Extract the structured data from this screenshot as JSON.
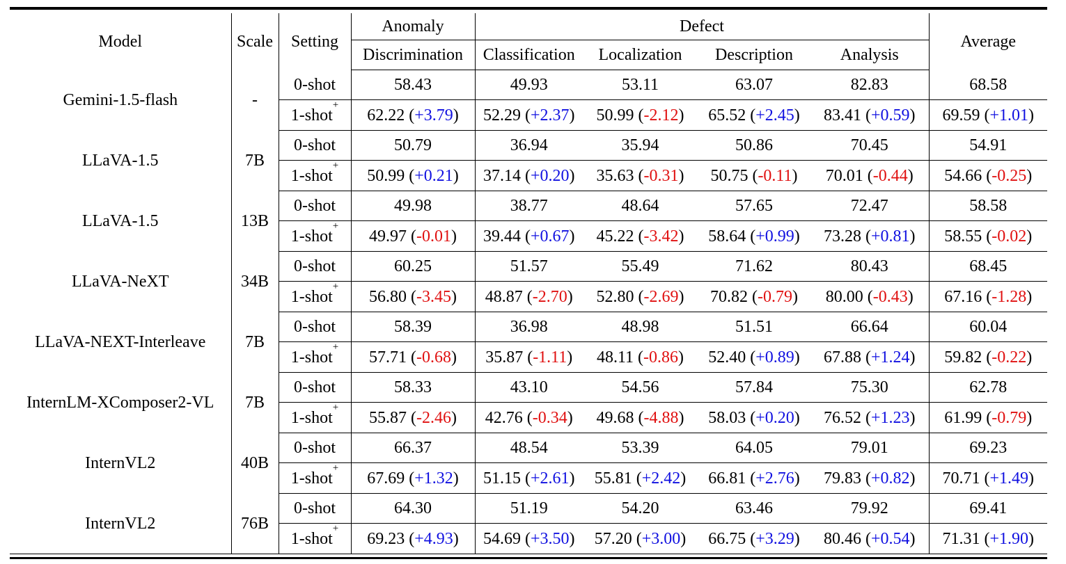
{
  "caption_fragment": "",
  "header": {
    "model": "Model",
    "scale": "Scale",
    "setting": "Setting",
    "anomaly": "Anomaly",
    "defect": "Defect",
    "average": "Average",
    "discrimination": "Discrimination",
    "classification": "Classification",
    "localization": "Localization",
    "description": "Description",
    "analysis": "Analysis"
  },
  "settings": {
    "zero": "0-shot",
    "one": "1-shot",
    "one_sup": "+"
  },
  "models": [
    {
      "name": "Gemini-1.5-flash",
      "scale": "-",
      "zero": [
        "58.43",
        "49.93",
        "53.11",
        "63.07",
        "82.83",
        "68.58"
      ],
      "one": [
        "62.22",
        "52.29",
        "50.99",
        "65.52",
        "83.41",
        "69.59"
      ],
      "delta": [
        "+3.79",
        "+2.37",
        "-2.12",
        "+2.45",
        "+0.59",
        "+1.01"
      ]
    },
    {
      "name": "LLaVA-1.5",
      "scale": "7B",
      "zero": [
        "50.79",
        "36.94",
        "35.94",
        "50.86",
        "70.45",
        "54.91"
      ],
      "one": [
        "50.99",
        "37.14",
        "35.63",
        "50.75",
        "70.01",
        "54.66"
      ],
      "delta": [
        "+0.21",
        "+0.20",
        "-0.31",
        "-0.11",
        "-0.44",
        "-0.25"
      ]
    },
    {
      "name": "LLaVA-1.5",
      "scale": "13B",
      "zero": [
        "49.98",
        "38.77",
        "48.64",
        "57.65",
        "72.47",
        "58.58"
      ],
      "one": [
        "49.97",
        "39.44",
        "45.22",
        "58.64",
        "73.28",
        "58.55"
      ],
      "delta": [
        "-0.01",
        "+0.67",
        "-3.42",
        "+0.99",
        "+0.81",
        "-0.02"
      ]
    },
    {
      "name": "LLaVA-NeXT",
      "scale": "34B",
      "zero": [
        "60.25",
        "51.57",
        "55.49",
        "71.62",
        "80.43",
        "68.45"
      ],
      "one": [
        "56.80",
        "48.87",
        "52.80",
        "70.82",
        "80.00",
        "67.16"
      ],
      "delta": [
        "-3.45",
        "-2.70",
        "-2.69",
        "-0.79",
        "-0.43",
        "-1.28"
      ]
    },
    {
      "name": "LLaVA-NEXT-Interleave",
      "scale": "7B",
      "zero": [
        "58.39",
        "36.98",
        "48.98",
        "51.51",
        "66.64",
        "60.04"
      ],
      "one": [
        "57.71",
        "35.87",
        "48.11",
        "52.40",
        "67.88",
        "59.82"
      ],
      "delta": [
        "-0.68",
        "-1.11",
        "-0.86",
        "+0.89",
        "+1.24",
        "-0.22"
      ]
    },
    {
      "name": "InternLM-XComposer2-VL",
      "scale": "7B",
      "zero": [
        "58.33",
        "43.10",
        "54.56",
        "57.84",
        "75.30",
        "62.78"
      ],
      "one": [
        "55.87",
        "42.76",
        "49.68",
        "58.03",
        "76.52",
        "61.99"
      ],
      "delta": [
        "-2.46",
        "-0.34",
        "-4.88",
        "+0.20",
        "+1.23",
        "-0.79"
      ]
    },
    {
      "name": "InternVL2",
      "scale": "40B",
      "zero": [
        "66.37",
        "48.54",
        "53.39",
        "64.05",
        "79.01",
        "69.23"
      ],
      "one": [
        "67.69",
        "51.15",
        "55.81",
        "66.81",
        "79.83",
        "70.71"
      ],
      "delta": [
        "+1.32",
        "+2.61",
        "+2.42",
        "+2.76",
        "+0.82",
        "+1.49"
      ]
    },
    {
      "name": "InternVL2",
      "scale": "76B",
      "zero": [
        "64.30",
        "51.19",
        "54.20",
        "63.46",
        "79.92",
        "69.41"
      ],
      "one": [
        "69.23",
        "54.69",
        "57.20",
        "66.75",
        "80.46",
        "71.31"
      ],
      "delta": [
        "+4.93",
        "+3.50",
        "+3.00",
        "+3.29",
        "+0.54",
        "+1.90"
      ]
    }
  ],
  "colors": {
    "positive": "#1010e0",
    "negative": "#e01010"
  }
}
